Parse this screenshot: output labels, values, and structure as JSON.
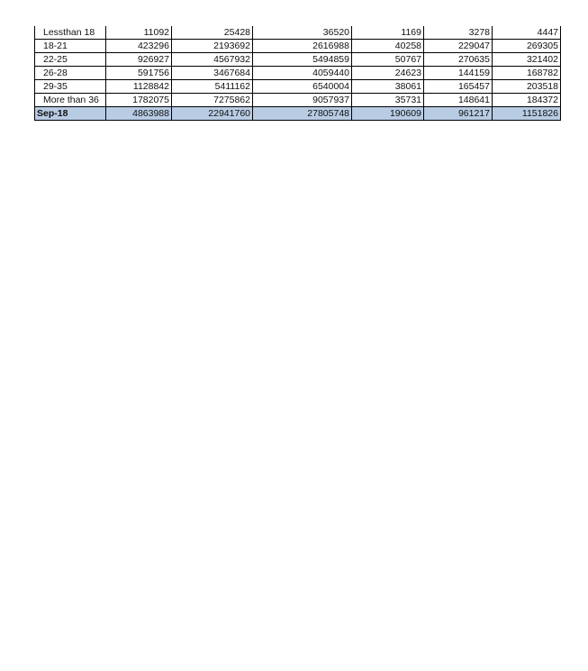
{
  "table": {
    "rows": [
      {
        "label": "Lessthan 18",
        "values": [
          "11092",
          "25428",
          "36520",
          "1169",
          "3278",
          "4447"
        ]
      },
      {
        "label": "18-21",
        "values": [
          "423296",
          "2193692",
          "2616988",
          "40258",
          "229047",
          "269305"
        ]
      },
      {
        "label": "22-25",
        "values": [
          "926927",
          "4567932",
          "5494859",
          "50767",
          "270635",
          "321402"
        ]
      },
      {
        "label": "26-28",
        "values": [
          "591756",
          "3467684",
          "4059440",
          "24623",
          "144159",
          "168782"
        ]
      },
      {
        "label": "29-35",
        "values": [
          "1128842",
          "5411162",
          "6540004",
          "38061",
          "165457",
          "203518"
        ]
      },
      {
        "label": "More than 36",
        "values": [
          "1782075",
          "7275862",
          "9057937",
          "35731",
          "148641",
          "184372"
        ]
      }
    ],
    "total": {
      "label": "Sep-18",
      "values": [
        "4863988",
        "22941760",
        "27805748",
        "190609",
        "961217",
        "1151826"
      ]
    },
    "total_fill": "#b8cce4"
  }
}
